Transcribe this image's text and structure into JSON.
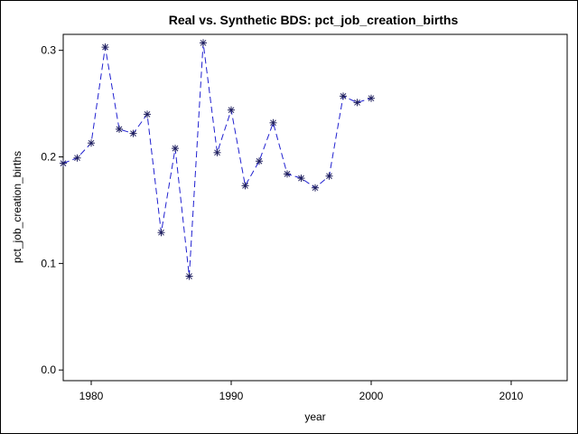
{
  "chart_data": {
    "type": "line",
    "title": "Real vs. Synthetic BDS: pct_job_creation_births",
    "xlabel": "year",
    "ylabel": "pct_job_creation_births",
    "xlim": [
      1978,
      2014
    ],
    "ylim": [
      -0.01,
      0.315
    ],
    "xticks": [
      1980,
      1990,
      2000,
      2010
    ],
    "yticks": [
      0.0,
      0.1,
      0.2,
      0.3
    ],
    "xtick_labels": [
      "1980",
      "1990",
      "2000",
      "2010"
    ],
    "ytick_labels": [
      "0.0",
      "0.1",
      "0.2",
      "0.3"
    ],
    "grid": false,
    "line_color": "#2020d0",
    "line_style": "dashed",
    "marker": "asterisk",
    "series": [
      {
        "x": [
          1978,
          1979,
          1980,
          1981,
          1982,
          1983,
          1984,
          1985,
          1986,
          1987,
          1988,
          1989,
          1990,
          1991,
          1992,
          1993,
          1994,
          1995,
          1996,
          1997,
          1998,
          1999,
          2000
        ],
        "values": [
          0.194,
          0.199,
          0.213,
          0.303,
          0.226,
          0.222,
          0.24,
          0.129,
          0.208,
          0.088,
          0.307,
          0.204,
          0.244,
          0.173,
          0.196,
          0.232,
          0.184,
          0.18,
          0.171,
          0.182,
          0.257,
          0.251,
          0.255
        ]
      }
    ]
  }
}
